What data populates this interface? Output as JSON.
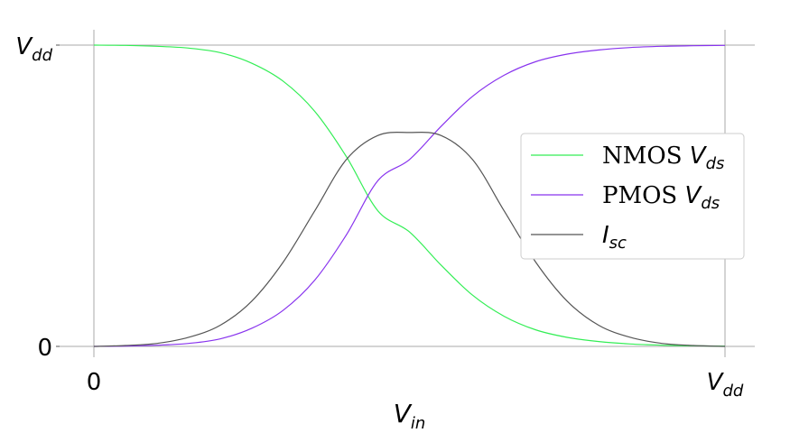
{
  "chart_data": {
    "type": "line",
    "title": "",
    "xlabel": {
      "base": "V",
      "sub": "in"
    },
    "ylabel": "",
    "x_ticks": [
      {
        "value": 0,
        "label": "0"
      },
      {
        "value": 1,
        "label": {
          "base": "V",
          "sub": "dd"
        }
      }
    ],
    "y_ticks": [
      {
        "value": 0,
        "label": "0"
      },
      {
        "value": 1,
        "label": {
          "base": "V",
          "sub": "dd"
        }
      }
    ],
    "xlim": [
      0,
      1
    ],
    "ylim": [
      0,
      1
    ],
    "grid": true,
    "legend_position": "center-right",
    "series": [
      {
        "name": "NMOS",
        "name_math": {
          "base": "V",
          "sub": "ds"
        },
        "color": "#33ee55",
        "x": [
          0,
          0.05,
          0.1,
          0.15,
          0.2,
          0.25,
          0.3,
          0.35,
          0.4,
          0.45,
          0.5,
          0.55,
          0.6,
          0.65,
          0.7,
          0.75,
          0.8,
          0.85,
          0.9,
          0.95,
          1.0
        ],
        "y": [
          1.0,
          0.999,
          0.996,
          0.99,
          0.975,
          0.94,
          0.88,
          0.78,
          0.63,
          0.45,
          0.38,
          0.27,
          0.17,
          0.1,
          0.055,
          0.03,
          0.016,
          0.008,
          0.004,
          0.002,
          0.001
        ]
      },
      {
        "name": "PMOS",
        "name_math": {
          "base": "V",
          "sub": "ds"
        },
        "color": "#8833ee",
        "x": [
          0,
          0.05,
          0.1,
          0.15,
          0.2,
          0.25,
          0.3,
          0.35,
          0.4,
          0.45,
          0.5,
          0.55,
          0.6,
          0.65,
          0.7,
          0.75,
          0.8,
          0.85,
          0.9,
          0.95,
          1.0
        ],
        "y": [
          0.0,
          0.001,
          0.004,
          0.01,
          0.025,
          0.06,
          0.12,
          0.22,
          0.37,
          0.55,
          0.62,
          0.73,
          0.83,
          0.9,
          0.945,
          0.97,
          0.984,
          0.992,
          0.996,
          0.998,
          0.999
        ]
      },
      {
        "name": "",
        "name_math": {
          "base": "I",
          "sub": "sc"
        },
        "color": "#555555",
        "x": [
          0,
          0.05,
          0.1,
          0.15,
          0.2,
          0.25,
          0.3,
          0.35,
          0.4,
          0.45,
          0.5,
          0.55,
          0.6,
          0.65,
          0.7,
          0.75,
          0.8,
          0.85,
          0.9,
          0.95,
          1.0
        ],
        "y": [
          0.0,
          0.003,
          0.01,
          0.03,
          0.07,
          0.15,
          0.28,
          0.45,
          0.62,
          0.7,
          0.71,
          0.7,
          0.62,
          0.45,
          0.28,
          0.15,
          0.07,
          0.03,
          0.01,
          0.003,
          0.0
        ]
      }
    ]
  }
}
